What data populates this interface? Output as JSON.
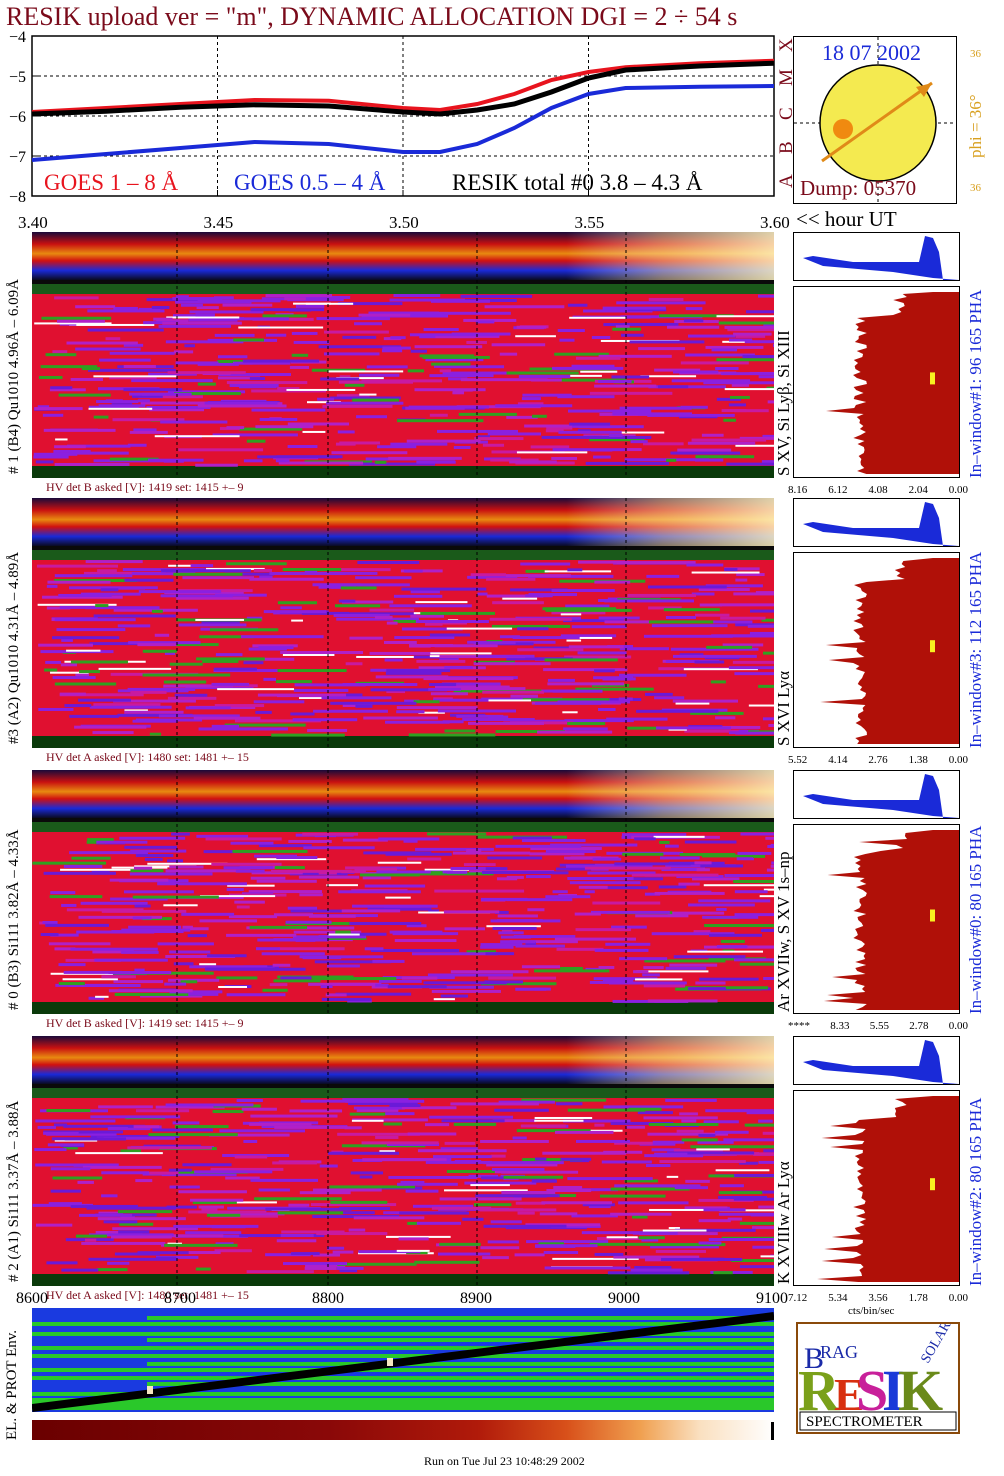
{
  "title": "RESIK upload ver = \"m\", DYNAMIC ALLOCATION  DGI =   2 ÷  54 s",
  "date": "18 07 2002",
  "dump": "Dump: 05370",
  "phi_label": "phi = 36°",
  "phi_tick": "36",
  "goes_classes": [
    "X",
    "M",
    "C",
    "B",
    "A"
  ],
  "hour_label": "<< hour UT",
  "legend": {
    "goes_long": "GOES 1 – 8 Å",
    "goes_short": "GOES 0.5 – 4 Å",
    "resik_total": "RESIK total #0  3.8 – 4.3 Å"
  },
  "colors": {
    "goes_long": "#e8141e",
    "goes_short": "#1a2ad8",
    "resik": "#000000",
    "title": "#7a0a1a",
    "pha_blue": "#1a2ad8",
    "pha_red": "#b01008",
    "phi": "#d8a020"
  },
  "chart_data": {
    "type": "line",
    "x": [
      3.4,
      3.42,
      3.44,
      3.46,
      3.48,
      3.5,
      3.51,
      3.52,
      3.53,
      3.54,
      3.55,
      3.56,
      3.58,
      3.6
    ],
    "series": [
      {
        "name": "GOES 1 – 8 Å",
        "values": [
          -5.9,
          -5.8,
          -5.7,
          -5.6,
          -5.62,
          -5.8,
          -5.85,
          -5.7,
          -5.45,
          -5.1,
          -4.9,
          -4.78,
          -4.68,
          -4.62
        ]
      },
      {
        "name": "GOES 0.5 – 4 Å",
        "values": [
          -7.1,
          -6.95,
          -6.8,
          -6.65,
          -6.7,
          -6.9,
          -6.9,
          -6.7,
          -6.3,
          -5.8,
          -5.45,
          -5.3,
          -5.27,
          -5.25
        ]
      },
      {
        "name": "RESIK total #0  3.8 – 4.3 Å",
        "values": [
          -5.95,
          -5.88,
          -5.78,
          -5.72,
          -5.75,
          -5.9,
          -5.95,
          -5.85,
          -5.7,
          -5.4,
          -5.05,
          -4.85,
          -4.75,
          -4.68
        ]
      }
    ],
    "xlim": [
      3.4,
      3.6
    ],
    "ylim": [
      -8,
      -4
    ],
    "yticks": [
      "−4",
      "−5",
      "−6",
      "−7",
      "−8"
    ],
    "xticks": [
      "3.40",
      "3.45",
      "3.50",
      "3.55",
      "3.60"
    ],
    "grid": true
  },
  "panels": [
    {
      "label": "# 1 (B4) Qu1010 4.96Å – 6.09Å",
      "right_label": "S XV, Si Lyβ, Si XIII",
      "window": "In–window#1:  96 165  PHA",
      "hv": "HV det B asked [V]:  1419 set:  1415 +–   9",
      "pha_ticks": [
        "8.16",
        "6.12",
        "4.08",
        "2.04",
        "0.00"
      ],
      "extra": ""
    },
    {
      "label": "#3 (A2) Qu1010  4.31Å – 4.89Å",
      "right_label": "S XVI Lyα",
      "window": "In–window#3:  112 165  PHA",
      "hv": "HV det A asked [V]:  1480 set:  1481 +–   15",
      "pha_ticks": [
        "5.52",
        "4.14",
        "2.76",
        "1.38",
        "0.00"
      ],
      "extra": ""
    },
    {
      "label": "# 0 (B3) Si111  3.82Å – 4.33Å",
      "right_label": "Ar XVIIw, S XV 1s–np",
      "window": "In–window#0:  80 165  PHA",
      "hv": "HV det B asked [V]:  1419 set:  1415 +–   9",
      "pha_ticks": [
        "8.33",
        "5.55",
        "2.78",
        "0.00"
      ],
      "extra": "****"
    },
    {
      "label": "# 2 (A1) Si111  3.37Å – 3.88Å",
      "right_label": "K XVIIIw  Ar Lyα",
      "window": "In–window#2:  80 165  PHA",
      "hv": "HV det A asked [V]:  1480 set:  1481 +–   15",
      "pha_ticks": [
        "7.12",
        "5.34",
        "3.56",
        "1.78",
        "0.00"
      ],
      "extra": ""
    }
  ],
  "pha_unit": "cts/bin/sec",
  "bottom_xticks": [
    "8600",
    "8700",
    "8800",
    "8900",
    "9000",
    "9100"
  ],
  "env_label": "EL. & PROT Env.",
  "logo": {
    "letters": "RESIK",
    "top": "BRAG",
    "side": "SOLAR",
    "banner": "SPECTROMETER"
  },
  "run_on": "Run on Tue Jul 23 10:48:29 2002"
}
